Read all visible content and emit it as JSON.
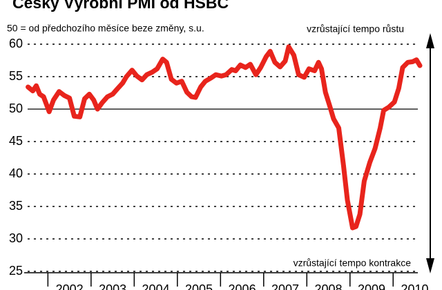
{
  "chart_data": {
    "type": "line",
    "title": "Český Výrobní PMI od HSBC",
    "subtitle": "50 = od předchozího měsíce beze změny, s.u.",
    "annotations": [
      "vzrůstající tempo růstu",
      "vzrůstající tempo kontrakce"
    ],
    "x": [
      2001.54,
      2001.65,
      2001.73,
      2001.81,
      2001.9,
      2002.03,
      2002.13,
      2002.26,
      2002.38,
      2002.5,
      2002.61,
      2002.74,
      2002.85,
      2002.96,
      2003.06,
      2003.15,
      2003.26,
      2003.38,
      2003.5,
      2003.62,
      2003.73,
      2003.82,
      2003.95,
      2004.06,
      2004.18,
      2004.29,
      2004.42,
      2004.53,
      2004.66,
      2004.75,
      2004.86,
      2004.98,
      2005.1,
      2005.22,
      2005.33,
      2005.42,
      2005.54,
      2005.65,
      2005.78,
      2005.89,
      2006.02,
      2006.13,
      2006.26,
      2006.35,
      2006.46,
      2006.58,
      2006.69,
      2006.82,
      2006.93,
      2007.06,
      2007.15,
      2007.26,
      2007.38,
      2007.5,
      2007.58,
      2007.7,
      2007.81,
      2007.94,
      2008.05,
      2008.18,
      2008.27,
      2008.34,
      2008.43,
      2008.53,
      2008.62,
      2008.74,
      2008.85,
      2008.94,
      2009.06,
      2009.14,
      2009.23,
      2009.33,
      2009.46,
      2009.58,
      2009.7,
      2009.78,
      2009.9,
      2010.03,
      2010.13,
      2010.22,
      2010.34,
      2010.45,
      2010.54,
      2010.62
    ],
    "series": [
      {
        "color": "#e8241c",
        "values": [
          53.4,
          52.8,
          53.6,
          52.3,
          51.9,
          49.6,
          51.4,
          52.7,
          52.1,
          51.7,
          48.9,
          48.8,
          51.6,
          52.3,
          51.4,
          50.0,
          51.0,
          51.9,
          52.3,
          53.2,
          54.0,
          55.0,
          56.0,
          55.1,
          54.5,
          55.3,
          55.7,
          56.2,
          57.7,
          57.2,
          54.6,
          54.0,
          54.3,
          52.6,
          51.9,
          51.8,
          53.4,
          54.3,
          54.8,
          55.3,
          55.1,
          55.3,
          56.1,
          55.9,
          56.8,
          56.4,
          56.9,
          55.3,
          56.4,
          58.1,
          58.9,
          57.2,
          56.5,
          57.4,
          59.6,
          58.3,
          55.3,
          54.9,
          56.2,
          55.9,
          57.2,
          56.2,
          52.6,
          50.5,
          48.5,
          47.1,
          41.3,
          36.0,
          31.7,
          31.9,
          33.8,
          38.9,
          41.8,
          43.9,
          47.1,
          49.8,
          50.3,
          51.1,
          53.2,
          56.4,
          57.2,
          57.3,
          57.6,
          56.7
        ]
      }
    ],
    "xlim": [
      2001.45,
      2010.7
    ],
    "xticks": [
      2002,
      2003,
      2004,
      2005,
      2006,
      2007,
      2008,
      2009,
      2010
    ],
    "ylim": [
      25,
      60
    ],
    "yticks": [
      25,
      30,
      35,
      40,
      45,
      50,
      55,
      60
    ],
    "baseline": 50,
    "grid": true
  }
}
